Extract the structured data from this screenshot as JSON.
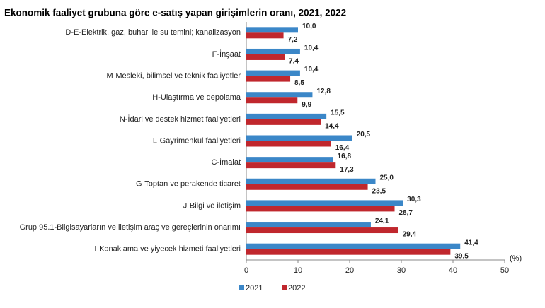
{
  "chart_data": {
    "type": "hbar",
    "title": "Ekonomik faaliyet grubuna göre e-satış yapan girişimlerin oranı, 2021, 2022",
    "categories": [
      "D-E-Elektrik, gaz, buhar ile su temini; kanalizasyon",
      "F-İnşaat",
      "M-Mesleki, bilimsel ve teknik faaliyetler",
      "H-Ulaştırma ve depolama",
      "N-İdari ve destek hizmet faaliyetleri",
      "L-Gayrimenkul faaliyetleri",
      "C-İmalat",
      "G-Toptan ve perakende ticaret",
      "J-Bilgi ve iletişim",
      "Grup 95.1-Bilgisayarların ve iletişim araç ve gereçlerinin onarımı",
      "I-Konaklama ve yiyecek hizmeti faaliyetleri"
    ],
    "series": [
      {
        "name": "2021",
        "color": "#3b87c8",
        "values": [
          10.0,
          10.4,
          10.4,
          12.8,
          15.5,
          20.5,
          16.8,
          25.0,
          30.3,
          24.1,
          41.4
        ],
        "value_labels": [
          "10,0",
          "10,4",
          "10,4",
          "12,8",
          "15,5",
          "20,5",
          "16,8",
          "25,0",
          "30,3",
          "24,1",
          "41,4"
        ]
      },
      {
        "name": "2022",
        "color": "#c0272d",
        "values": [
          7.2,
          7.4,
          8.5,
          9.9,
          14.4,
          16.4,
          17.3,
          23.5,
          28.7,
          29.4,
          39.5
        ],
        "value_labels": [
          "7,2",
          "7,4",
          "8,5",
          "9,9",
          "14,4",
          "16,4",
          "17,3",
          "23,5",
          "28,7",
          "29,4",
          "39,5"
        ]
      }
    ],
    "xlabel": "(%)",
    "xlim": [
      0,
      50
    ],
    "xticks": [
      0,
      10,
      20,
      30,
      40,
      50
    ]
  }
}
